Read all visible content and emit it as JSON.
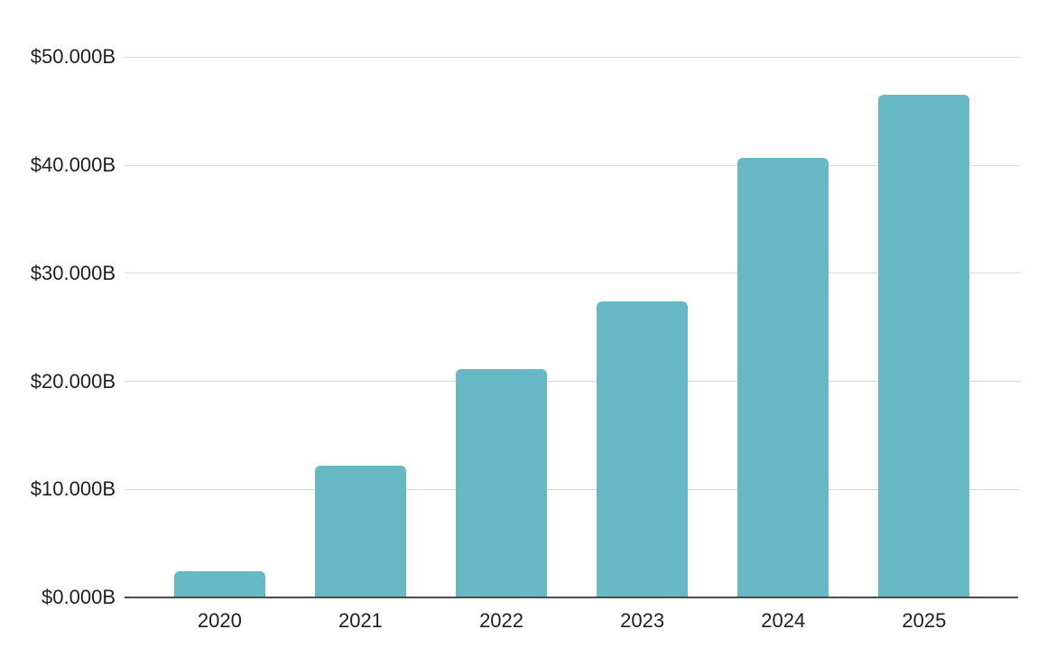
{
  "chart_data": {
    "type": "bar",
    "title": "",
    "xlabel": "",
    "ylabel": "",
    "categories": [
      "2020",
      "2021",
      "2022",
      "2023",
      "2024",
      "2025"
    ],
    "values": [
      2.4,
      12.2,
      21.1,
      27.4,
      40.7,
      46.5
    ],
    "series_unit": "$B",
    "ylim": [
      0,
      50
    ],
    "y_ticks": [
      {
        "value": 0,
        "label": "$0.000B"
      },
      {
        "value": 10,
        "label": "$10.000B"
      },
      {
        "value": 20,
        "label": "$20.000B"
      },
      {
        "value": 30,
        "label": "$30.000B"
      },
      {
        "value": 40,
        "label": "$40.000B"
      },
      {
        "value": 50,
        "label": "$50.000B"
      }
    ],
    "grid": true,
    "legend": false,
    "colors": {
      "bar": "#65b8c4",
      "gridline": "#dadada",
      "axis_line": "#4d4d4d",
      "label": "#1f1f1f",
      "background": "#ffffff"
    }
  }
}
